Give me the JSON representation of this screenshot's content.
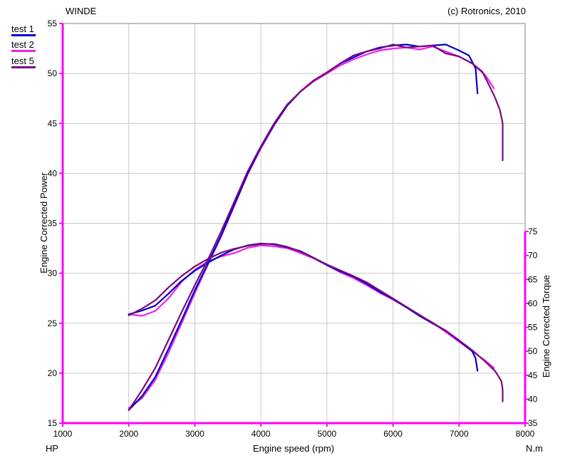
{
  "header": {
    "left_title": "WINDE",
    "copyright": "(c) Rotronics, 2010"
  },
  "colors": {
    "axis": "#ff00ff",
    "grid": "#c8c8c8",
    "frame": "#808080",
    "series": {
      "test 1": "#0000cc",
      "test 2": "#ee22ee",
      "test 5": "#7a0a7a"
    }
  },
  "unit_labels": {
    "left": "HP",
    "right": "N.m"
  },
  "chart_data": {
    "type": "line",
    "title": "",
    "xlabel": "Engine speed (rpm)",
    "ylabel": "Engine Corrected Power",
    "y2label": "Engine Corrected Torque",
    "xlim": [
      1000,
      8000
    ],
    "ylim": [
      15,
      55
    ],
    "y2lim": [
      35,
      75
    ],
    "x_ticks": [
      1000,
      2000,
      3000,
      4000,
      5000,
      6000,
      7000,
      8000
    ],
    "y_ticks": [
      15,
      20,
      25,
      30,
      35,
      40,
      45,
      50,
      55
    ],
    "y2_ticks": [
      35,
      40,
      45,
      50,
      55,
      60,
      65,
      70,
      75
    ],
    "grid": true,
    "legend_position": "top-left",
    "legend": [
      "test 1",
      "test 2",
      "test 5"
    ],
    "series": [
      {
        "name": "test 1",
        "quantity": "power",
        "axis": "left",
        "x": [
          2000,
          2200,
          2400,
          2600,
          2800,
          3000,
          3200,
          3400,
          3600,
          3800,
          4000,
          4200,
          4400,
          4600,
          4800,
          5000,
          5200,
          5400,
          5600,
          5800,
          6000,
          6200,
          6400,
          6600,
          6800,
          7000,
          7150,
          7250,
          7280
        ],
        "y": [
          16.3,
          17.7,
          19.6,
          22.4,
          25.3,
          28.3,
          31.0,
          33.8,
          36.9,
          40.0,
          42.6,
          44.9,
          46.8,
          48.2,
          49.3,
          50.1,
          51.0,
          51.6,
          52.2,
          52.6,
          52.8,
          52.9,
          52.7,
          52.8,
          52.9,
          52.3,
          51.8,
          50.5,
          48.0
        ]
      },
      {
        "name": "test 2",
        "quantity": "power",
        "axis": "left",
        "x": [
          2000,
          2200,
          2400,
          2600,
          2800,
          3000,
          3200,
          3400,
          3600,
          3800,
          4000,
          4200,
          4400,
          4600,
          4800,
          5000,
          5200,
          5400,
          5600,
          5800,
          6000,
          6200,
          6400,
          6600,
          6800,
          7000,
          7200,
          7400,
          7530
        ],
        "y": [
          16.5,
          17.5,
          19.3,
          22.0,
          25.0,
          28.0,
          30.9,
          33.7,
          36.8,
          39.9,
          42.5,
          44.8,
          46.8,
          48.2,
          49.2,
          50.0,
          50.8,
          51.4,
          51.9,
          52.3,
          52.5,
          52.6,
          52.4,
          52.7,
          52.2,
          51.7,
          51.0,
          49.8,
          48.5
        ]
      },
      {
        "name": "test 5",
        "quantity": "power",
        "axis": "left",
        "x": [
          2000,
          2200,
          2400,
          2600,
          2800,
          3000,
          3200,
          3400,
          3600,
          3800,
          4000,
          4200,
          4400,
          4600,
          4800,
          5000,
          5200,
          5400,
          5600,
          5800,
          6000,
          6200,
          6400,
          6600,
          6800,
          7000,
          7200,
          7350,
          7450,
          7550,
          7620,
          7660,
          7660
        ],
        "y": [
          16.3,
          18.3,
          20.5,
          23.3,
          26.1,
          28.8,
          31.4,
          34.2,
          37.2,
          40.2,
          42.7,
          45.0,
          46.9,
          48.2,
          49.3,
          50.1,
          51.0,
          51.8,
          52.2,
          52.5,
          52.9,
          52.6,
          52.7,
          52.8,
          52.0,
          51.7,
          51.0,
          50.2,
          48.9,
          47.5,
          46.3,
          45.0,
          41.3
        ]
      },
      {
        "name": "test 1",
        "quantity": "torque",
        "axis": "right",
        "x": [
          2000,
          2200,
          2400,
          2600,
          2800,
          3000,
          3200,
          3400,
          3600,
          3800,
          4000,
          4200,
          4400,
          4600,
          4800,
          5000,
          5200,
          5400,
          5600,
          5800,
          6000,
          6200,
          6400,
          6600,
          6800,
          7000,
          7200,
          7250,
          7280
        ],
        "y": [
          57.7,
          58.5,
          59.5,
          62.0,
          64.7,
          66.8,
          68.5,
          70.0,
          71.3,
          72.1,
          72.5,
          72.3,
          71.7,
          70.9,
          69.5,
          68.0,
          66.7,
          65.6,
          64.1,
          62.4,
          60.9,
          59.2,
          57.4,
          55.8,
          54.3,
          52.2,
          50.0,
          48.5,
          45.9
        ]
      },
      {
        "name": "test 2",
        "quantity": "torque",
        "axis": "right",
        "x": [
          2000,
          2200,
          2400,
          2600,
          2800,
          3000,
          3200,
          3400,
          3600,
          3800,
          4000,
          4200,
          4400,
          4600,
          4800,
          5000,
          5200,
          5400,
          5600,
          5800,
          6000,
          6200,
          6400,
          6600,
          6800,
          7000,
          7200,
          7400,
          7530
        ],
        "y": [
          57.7,
          57.4,
          58.4,
          61.0,
          64.5,
          67.0,
          68.8,
          69.8,
          70.5,
          71.6,
          72.1,
          71.9,
          71.5,
          70.5,
          69.4,
          68.0,
          66.5,
          65.3,
          63.8,
          62.2,
          60.8,
          59.2,
          57.5,
          56.0,
          54.0,
          52.0,
          50.0,
          48.0,
          46.5
        ]
      },
      {
        "name": "test 5",
        "quantity": "torque",
        "axis": "right",
        "x": [
          2000,
          2200,
          2400,
          2600,
          2800,
          3000,
          3200,
          3400,
          3600,
          3800,
          4000,
          4200,
          4400,
          4600,
          4800,
          5000,
          5200,
          5400,
          5600,
          5800,
          6000,
          6200,
          6400,
          6600,
          6800,
          7000,
          7200,
          7400,
          7550,
          7640,
          7660,
          7660
        ],
        "y": [
          57.5,
          58.9,
          60.6,
          63.3,
          65.7,
          67.7,
          69.3,
          70.6,
          71.4,
          72.0,
          72.4,
          72.4,
          71.8,
          70.8,
          69.5,
          68.1,
          66.9,
          65.7,
          64.4,
          62.7,
          61.0,
          59.3,
          57.6,
          55.9,
          54.3,
          52.3,
          50.2,
          47.8,
          45.8,
          43.8,
          42.0,
          39.5
        ]
      }
    ]
  }
}
